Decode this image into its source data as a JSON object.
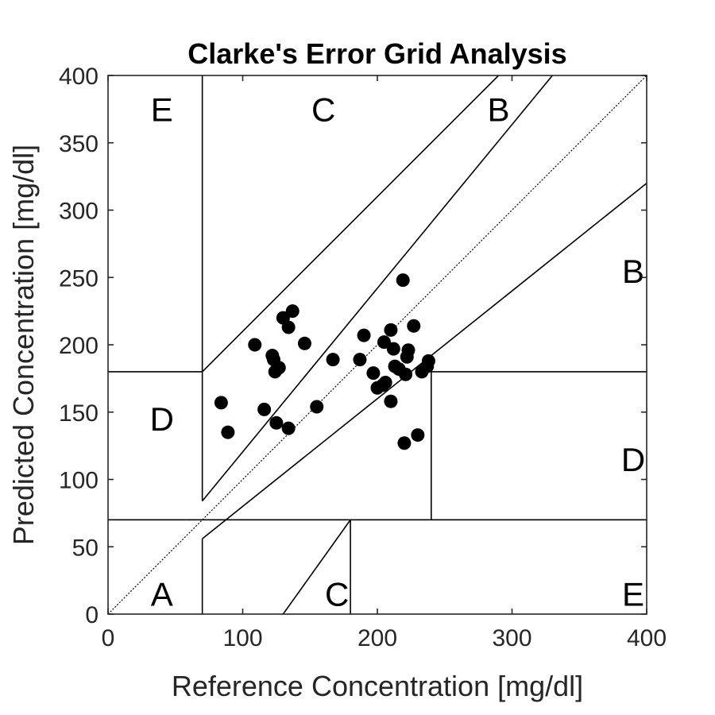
{
  "chart_data": {
    "type": "scatter",
    "title": "Clarke's Error Grid Analysis",
    "xlabel": "Reference Concentration [mg/dl]",
    "ylabel": "Predicted Concentration [mg/dl]",
    "xlim": [
      0,
      400
    ],
    "ylim": [
      0,
      400
    ],
    "xticks": [
      0,
      100,
      200,
      300,
      400
    ],
    "yticks": [
      0,
      50,
      100,
      150,
      200,
      250,
      300,
      350,
      400
    ],
    "grid": false,
    "identity_line": "dotted",
    "zone_boundaries": [
      {
        "x": [
          70,
          70
        ],
        "y": [
          400,
          84
        ]
      },
      {
        "x": [
          0,
          58.33
        ],
        "y": [
          70,
          70
        ]
      },
      {
        "x": [
          58.33,
          400
        ],
        "y": [
          70,
          70
        ]
      },
      {
        "x": [
          70,
          290
        ],
        "y": [
          180,
          400
        ]
      },
      {
        "x": [
          70,
          70
        ],
        "y": [
          0,
          56
        ]
      },
      {
        "x": [
          70,
          400
        ],
        "y": [
          56,
          320
        ]
      },
      {
        "x": [
          130,
          180
        ],
        "y": [
          0,
          70
        ]
      },
      {
        "x": [
          180,
          180
        ],
        "y": [
          0,
          70
        ]
      },
      {
        "x": [
          240,
          240
        ],
        "y": [
          70,
          180
        ]
      },
      {
        "x": [
          240,
          400
        ],
        "y": [
          180,
          180
        ]
      },
      {
        "x": [
          0,
          70
        ],
        "y": [
          180,
          180
        ]
      },
      {
        "x": [
          70,
          330
        ],
        "y": [
          84,
          400
        ]
      },
      {
        "x": [
          0,
          70
        ],
        "y": [
          180,
          180
        ]
      }
    ],
    "zone_labels": [
      {
        "text": "A",
        "x": 40,
        "y": 15
      },
      {
        "text": "B",
        "x": 290,
        "y": 375
      },
      {
        "text": "B",
        "x": 390,
        "y": 255
      },
      {
        "text": "C",
        "x": 160,
        "y": 375
      },
      {
        "text": "C",
        "x": 170,
        "y": 15
      },
      {
        "text": "D",
        "x": 40,
        "y": 145
      },
      {
        "text": "D",
        "x": 390,
        "y": 115
      },
      {
        "text": "E",
        "x": 40,
        "y": 375
      },
      {
        "text": "E",
        "x": 390,
        "y": 15
      }
    ],
    "points": [
      {
        "x": 84,
        "y": 157
      },
      {
        "x": 89,
        "y": 135
      },
      {
        "x": 109,
        "y": 200
      },
      {
        "x": 116,
        "y": 152
      },
      {
        "x": 122,
        "y": 192
      },
      {
        "x": 123,
        "y": 189
      },
      {
        "x": 124,
        "y": 180
      },
      {
        "x": 125,
        "y": 142
      },
      {
        "x": 127,
        "y": 183
      },
      {
        "x": 130,
        "y": 220
      },
      {
        "x": 134,
        "y": 213
      },
      {
        "x": 134,
        "y": 138
      },
      {
        "x": 137,
        "y": 225
      },
      {
        "x": 146,
        "y": 201
      },
      {
        "x": 155,
        "y": 154
      },
      {
        "x": 167,
        "y": 189
      },
      {
        "x": 187,
        "y": 189
      },
      {
        "x": 190,
        "y": 207
      },
      {
        "x": 197,
        "y": 179
      },
      {
        "x": 200,
        "y": 168
      },
      {
        "x": 204,
        "y": 170
      },
      {
        "x": 205,
        "y": 202
      },
      {
        "x": 206,
        "y": 172
      },
      {
        "x": 210,
        "y": 158
      },
      {
        "x": 210,
        "y": 211
      },
      {
        "x": 212,
        "y": 197
      },
      {
        "x": 213,
        "y": 184
      },
      {
        "x": 216,
        "y": 182
      },
      {
        "x": 219,
        "y": 248
      },
      {
        "x": 220,
        "y": 127
      },
      {
        "x": 221,
        "y": 178
      },
      {
        "x": 222,
        "y": 191
      },
      {
        "x": 223,
        "y": 196
      },
      {
        "x": 227,
        "y": 214
      },
      {
        "x": 230,
        "y": 133
      },
      {
        "x": 233,
        "y": 180
      },
      {
        "x": 237,
        "y": 184
      },
      {
        "x": 238,
        "y": 188
      }
    ]
  },
  "colors": {
    "marker": "#000000",
    "axis": "#262626",
    "background": "#ffffff"
  }
}
